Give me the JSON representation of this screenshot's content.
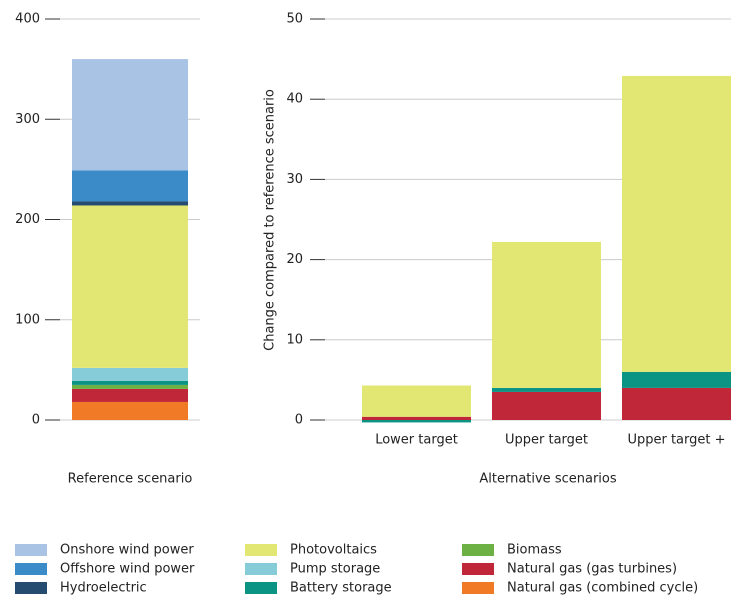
{
  "chart_data": [
    {
      "type": "bar",
      "stacked": true,
      "xlabel": "Reference scenario",
      "categories": [
        null
      ],
      "ylim": [
        0,
        400
      ],
      "yticks": [
        0,
        100,
        200,
        300,
        400
      ],
      "grid": true,
      "series": [
        {
          "name": "Onshore wind power",
          "color": "#a8c3e3",
          "values": [
            111
          ]
        },
        {
          "name": "Offshore wind power",
          "color": "#3a8bc8",
          "values": [
            31
          ]
        },
        {
          "name": "Hydroelectric",
          "color": "#254c70",
          "values": [
            4
          ]
        },
        {
          "name": "Photovoltaics",
          "color": "#e2e673",
          "values": [
            162
          ]
        },
        {
          "name": "Pump storage",
          "color": "#86ccd8",
          "values": [
            13
          ]
        },
        {
          "name": "Battery storage",
          "color": "#0b9384",
          "values": [
            4
          ]
        },
        {
          "name": "Biomass",
          "color": "#6db043",
          "values": [
            4
          ]
        },
        {
          "name": "Natural gas (gas turbines)",
          "color": "#c0283a",
          "values": [
            13
          ]
        },
        {
          "name": "Natural gas (combined cycle)",
          "color": "#f07a26",
          "values": [
            18
          ]
        }
      ]
    },
    {
      "type": "bar",
      "stacked": true,
      "xlabel": "Alternative scenarios",
      "ylabel": "Change compared to reference scenario",
      "categories": [
        "Lower target",
        "Upper target",
        "Upper target +"
      ],
      "ylim": [
        0,
        50
      ],
      "yticks": [
        0,
        10,
        20,
        30,
        40,
        50
      ],
      "grid": true,
      "series": [
        {
          "color": "#e2e673",
          "values": [
            3.9,
            18.2,
            36.9
          ]
        },
        {
          "color": "#0b9384",
          "values": [
            -0.3,
            0.5,
            2
          ]
        },
        {
          "color": "#c0283a",
          "values": [
            0.4,
            3.5,
            4
          ]
        }
      ]
    }
  ]
}
